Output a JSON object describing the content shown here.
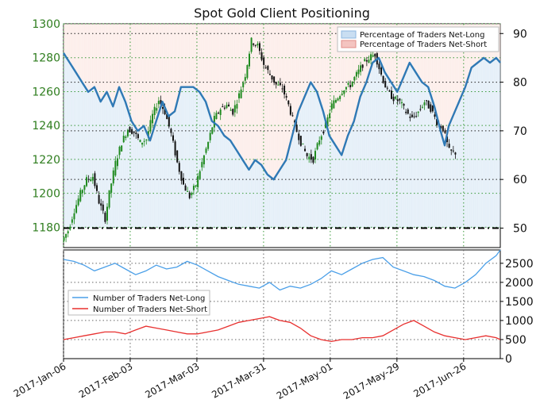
{
  "chart_data": [
    {
      "type": "candlestick+line",
      "title": "Spot Gold Client Positioning",
      "left_axis": {
        "range": [
          1168,
          1300
        ],
        "ticks": [
          1180,
          1200,
          1220,
          1240,
          1260,
          1280,
          1300
        ],
        "color": "#2e7d1e"
      },
      "right_axis": {
        "range": [
          46,
          92
        ],
        "ticks": [
          50,
          60,
          70,
          80,
          90
        ]
      },
      "x_dates": [
        "2017-Jan-06",
        "2017-Feb-03",
        "2017-Mar-03",
        "2017-Mar-31",
        "2017-May-01",
        "2017-May-29",
        "2017-Jun-26"
      ],
      "legend": {
        "position": "top-right",
        "entries": [
          {
            "label": "Percentage of Traders Net-Long",
            "color": "#c9def2"
          },
          {
            "label": "Percentage of Traders Net-Short",
            "color": "#f4c4c0"
          }
        ]
      },
      "reference_line": {
        "value": 50,
        "axis": "right",
        "style": "dash-dot"
      },
      "grid": true,
      "price_path": [
        [
          0,
          1172
        ],
        [
          3,
          1178
        ],
        [
          6,
          1190
        ],
        [
          9,
          1200
        ],
        [
          12,
          1208
        ],
        [
          15,
          1210
        ],
        [
          18,
          1195
        ],
        [
          21,
          1185
        ],
        [
          23,
          1200
        ],
        [
          26,
          1218
        ],
        [
          29,
          1230
        ],
        [
          32,
          1238
        ],
        [
          35,
          1236
        ],
        [
          38,
          1230
        ],
        [
          41,
          1232
        ],
        [
          44,
          1246
        ],
        [
          47,
          1255
        ],
        [
          50,
          1248
        ],
        [
          53,
          1235
        ],
        [
          56,
          1218
        ],
        [
          59,
          1205
        ],
        [
          62,
          1198
        ],
        [
          65,
          1205
        ],
        [
          68,
          1218
        ],
        [
          71,
          1230
        ],
        [
          74,
          1244
        ],
        [
          77,
          1250
        ],
        [
          80,
          1252
        ],
        [
          83,
          1248
        ],
        [
          86,
          1258
        ],
        [
          89,
          1270
        ],
        [
          92,
          1290
        ],
        [
          95,
          1287
        ],
        [
          98,
          1276
        ],
        [
          101,
          1270
        ],
        [
          104,
          1264
        ],
        [
          107,
          1262
        ],
        [
          110,
          1252
        ],
        [
          113,
          1240
        ],
        [
          116,
          1230
        ],
        [
          119,
          1222
        ],
        [
          122,
          1220
        ],
        [
          125,
          1232
        ],
        [
          128,
          1240
        ],
        [
          131,
          1252
        ],
        [
          134,
          1257
        ],
        [
          137,
          1262
        ],
        [
          140,
          1264
        ],
        [
          143,
          1270
        ],
        [
          146,
          1276
        ],
        [
          149,
          1280
        ],
        [
          152,
          1282
        ],
        [
          155,
          1270
        ],
        [
          158,
          1260
        ],
        [
          161,
          1256
        ],
        [
          164,
          1254
        ],
        [
          167,
          1248
        ],
        [
          170,
          1244
        ],
        [
          173,
          1248
        ],
        [
          176,
          1254
        ],
        [
          179,
          1250
        ],
        [
          182,
          1242
        ],
        [
          185,
          1238
        ],
        [
          188,
          1225
        ],
        [
          190,
          1224
        ]
      ],
      "long_pct_path": [
        [
          0,
          86
        ],
        [
          3,
          84
        ],
        [
          6,
          82
        ],
        [
          9,
          80
        ],
        [
          12,
          78
        ],
        [
          15,
          79
        ],
        [
          18,
          76
        ],
        [
          21,
          78
        ],
        [
          24,
          75
        ],
        [
          27,
          79
        ],
        [
          30,
          76
        ],
        [
          33,
          72
        ],
        [
          36,
          70
        ],
        [
          39,
          71
        ],
        [
          42,
          68
        ],
        [
          45,
          72
        ],
        [
          48,
          76
        ],
        [
          51,
          73
        ],
        [
          54,
          74
        ],
        [
          57,
          79
        ],
        [
          60,
          79
        ],
        [
          63,
          79
        ],
        [
          66,
          78
        ],
        [
          69,
          76
        ],
        [
          72,
          72
        ],
        [
          75,
          71
        ],
        [
          78,
          69
        ],
        [
          81,
          68
        ],
        [
          84,
          66
        ],
        [
          87,
          64
        ],
        [
          90,
          62
        ],
        [
          93,
          64
        ],
        [
          96,
          63
        ],
        [
          99,
          61
        ],
        [
          102,
          60
        ],
        [
          105,
          62
        ],
        [
          108,
          64
        ],
        [
          111,
          69
        ],
        [
          114,
          74
        ],
        [
          117,
          77
        ],
        [
          120,
          80
        ],
        [
          123,
          78
        ],
        [
          126,
          74
        ],
        [
          129,
          69
        ],
        [
          132,
          67
        ],
        [
          135,
          65
        ],
        [
          138,
          69
        ],
        [
          141,
          72
        ],
        [
          144,
          77
        ],
        [
          147,
          80
        ],
        [
          150,
          84
        ],
        [
          153,
          85
        ],
        [
          156,
          82
        ],
        [
          159,
          80
        ],
        [
          162,
          78
        ],
        [
          165,
          81
        ],
        [
          168,
          84
        ],
        [
          171,
          82
        ],
        [
          174,
          80
        ],
        [
          177,
          79
        ],
        [
          180,
          75
        ],
        [
          183,
          70
        ],
        [
          185,
          67
        ],
        [
          187,
          71
        ],
        [
          190,
          74
        ],
        [
          192,
          76
        ],
        [
          195,
          79
        ],
        [
          198,
          83
        ],
        [
          201,
          84
        ],
        [
          204,
          85
        ],
        [
          207,
          84
        ],
        [
          210,
          85
        ],
        [
          212,
          84
        ]
      ]
    },
    {
      "type": "line",
      "y_ticks": [
        0,
        500,
        1000,
        1500,
        2000,
        2500
      ],
      "ylim": [
        0,
        2850
      ],
      "legend": {
        "position": "middle-left"
      },
      "series": [
        {
          "name": "Number of Traders Net-Long",
          "color": "#4a9fe8",
          "x": [
            0,
            5,
            10,
            15,
            20,
            25,
            30,
            35,
            40,
            45,
            50,
            55,
            60,
            65,
            70,
            75,
            80,
            85,
            90,
            95,
            100,
            105,
            110,
            115,
            120,
            125,
            130,
            135,
            140,
            145,
            150,
            155,
            160,
            165,
            170,
            175,
            180,
            185,
            190,
            195,
            200,
            205,
            210,
            212
          ],
          "values": [
            2600,
            2550,
            2450,
            2300,
            2400,
            2500,
            2350,
            2200,
            2300,
            2450,
            2350,
            2400,
            2550,
            2450,
            2300,
            2150,
            2050,
            1950,
            1900,
            1850,
            2000,
            1800,
            1900,
            1850,
            1950,
            2100,
            2300,
            2200,
            2350,
            2500,
            2600,
            2650,
            2400,
            2300,
            2200,
            2150,
            2050,
            1900,
            1850,
            2000,
            2200,
            2500,
            2700,
            2850
          ]
        },
        {
          "name": "Number of Traders Net-Short",
          "color": "#e8302f",
          "x": [
            0,
            5,
            10,
            15,
            20,
            25,
            30,
            35,
            40,
            45,
            50,
            55,
            60,
            65,
            70,
            75,
            80,
            85,
            90,
            95,
            100,
            105,
            110,
            115,
            120,
            125,
            130,
            135,
            140,
            145,
            150,
            155,
            160,
            165,
            170,
            175,
            180,
            185,
            190,
            195,
            200,
            205,
            210,
            212
          ],
          "values": [
            500,
            550,
            600,
            650,
            700,
            700,
            650,
            750,
            850,
            800,
            750,
            700,
            650,
            650,
            700,
            750,
            850,
            950,
            1000,
            1050,
            1100,
            1000,
            950,
            800,
            600,
            500,
            450,
            500,
            500,
            550,
            550,
            600,
            750,
            900,
            1000,
            850,
            700,
            600,
            550,
            500,
            550,
            600,
            550,
            500
          ]
        }
      ],
      "x_labels": [
        "2017-Jan-06",
        "2017-Feb-03",
        "2017-Mar-03",
        "2017-Mar-31",
        "2017-May-01",
        "2017-May-29",
        "2017-Jun-26"
      ]
    }
  ]
}
